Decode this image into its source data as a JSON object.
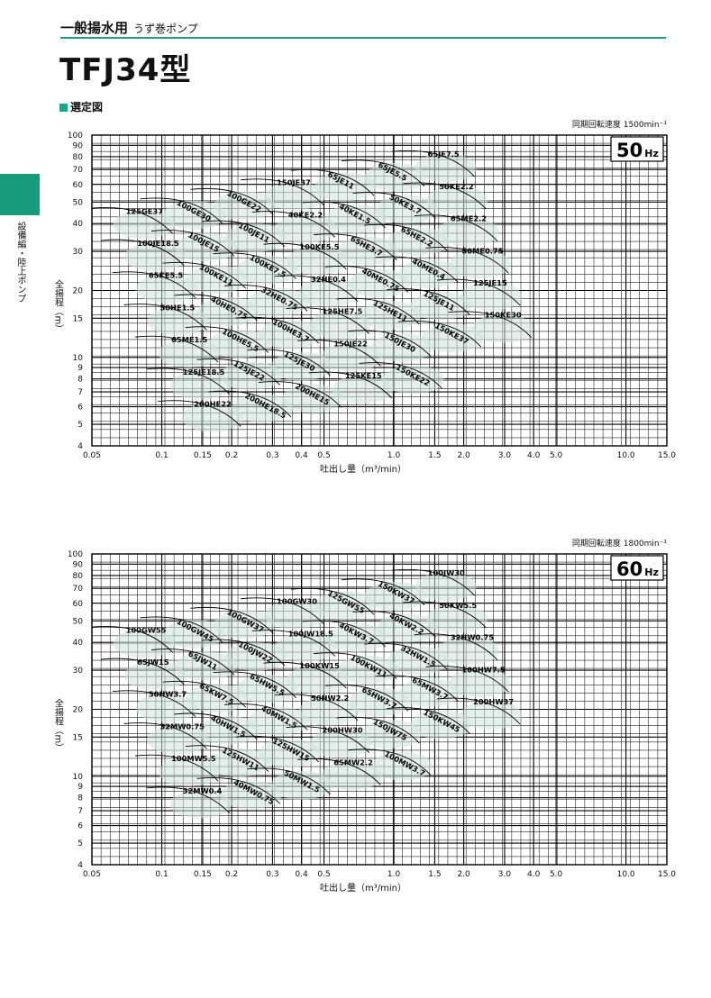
{
  "header": {
    "category": "一般揚水用",
    "sub": "うず巻ポンプ",
    "model": "TFJ34型",
    "section": "選定図",
    "side_tab": "設備編・陸上ポンプ"
  },
  "colors": {
    "accent": "#189b7d",
    "region_fill": "#dcebe6",
    "grid": "#111111"
  },
  "chart_data": [
    {
      "type": "line",
      "title": "50Hz",
      "title_num": "50",
      "title_unit": "Hz",
      "subtitle": "同期回転速度 1500min⁻¹",
      "xlabel": "吐出し量（m³/min）",
      "ylabel": "全揚程（m）",
      "xscale": "log",
      "yscale": "log",
      "xlim": [
        0.05,
        15
      ],
      "ylim": [
        4,
        100
      ],
      "x_ticks": [
        "0.05",
        "0.1",
        "0.15",
        "0.2",
        "0.3",
        "0.4",
        "0.5",
        "1.0",
        "1.5",
        "2.0",
        "3.0",
        "4.0",
        "5.0",
        "10.0",
        "15.0"
      ],
      "y_ticks": [
        "4",
        "5",
        "6",
        "7",
        "8",
        "9",
        "10",
        "15",
        "20",
        "30",
        "40",
        "50",
        "60",
        "70",
        "80",
        "90",
        "100"
      ],
      "models": [
        "125GE37",
        "100GE30",
        "100GE22",
        "150JE37",
        "65JE11",
        "65JE5.5",
        "65JE7.5",
        "100JE18.5",
        "100JE15",
        "100JE11",
        "40KE2.2",
        "40KE1.5",
        "50KE3.7",
        "50KE2.2",
        "65KE5.5",
        "100KE11",
        "100KE7.5",
        "100KE5.5",
        "65HE3.7",
        "65HE2.2",
        "65ME2.2",
        "50HE1.5",
        "40HE0.75",
        "32HE0.75",
        "32HE0.4",
        "40ME0.75",
        "40ME0.4",
        "50ME0.75",
        "65ME1.5",
        "100HE5.5",
        "100HE3.7",
        "125HE7.5",
        "125HE11",
        "125JE11",
        "125JE15",
        "125JE18.5",
        "125JE22",
        "125JE30",
        "150JE22",
        "150JE30",
        "150KE37",
        "150KE30",
        "200HE22",
        "200HE18.5",
        "200HE15",
        "125KE15",
        "150KE22"
      ]
    },
    {
      "type": "line",
      "title": "60Hz",
      "title_num": "60",
      "title_unit": "Hz",
      "subtitle": "同期回転速度 1800min⁻¹",
      "xlabel": "吐出し量（m³/min）",
      "ylabel": "全揚程（m）",
      "xscale": "log",
      "yscale": "log",
      "xlim": [
        0.05,
        15
      ],
      "ylim": [
        4,
        100
      ],
      "x_ticks": [
        "0.05",
        "0.1",
        "0.15",
        "0.2",
        "0.3",
        "0.4",
        "0.5",
        "1.0",
        "1.5",
        "2.0",
        "3.0",
        "4.0",
        "5.0",
        "10.0",
        "15.0"
      ],
      "y_ticks": [
        "4",
        "5",
        "6",
        "7",
        "8",
        "9",
        "10",
        "15",
        "20",
        "30",
        "40",
        "50",
        "60",
        "70",
        "80",
        "90",
        "100"
      ],
      "models": [
        "100GW55",
        "100GW45",
        "100GW37",
        "100GW30",
        "125GW55",
        "150KW37",
        "100JW30",
        "65JW15",
        "65JW11",
        "100JW22",
        "100JW18.5",
        "40KW3.7",
        "40KW2.2",
        "50KW5.5",
        "50HW3.7",
        "65KW7.5",
        "65HW5.5",
        "100KW15",
        "100KW11",
        "32HW1.5",
        "32HW0.75",
        "32MW0.75",
        "40HW1.5",
        "40MW1.5",
        "50HW2.2",
        "65HW3.7",
        "65MW3.7",
        "100HW7.5",
        "100MW5.5",
        "125HW11",
        "125HW15",
        "200HW30",
        "150JW75",
        "150KW45",
        "200HW37",
        "32MW0.4",
        "40MW0.75",
        "50MW1.5",
        "65MW2.2",
        "100MW3.7"
      ]
    }
  ]
}
